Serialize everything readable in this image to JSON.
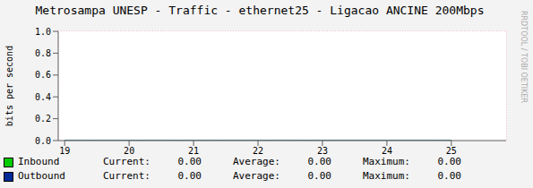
{
  "chart_data": {
    "type": "line",
    "title": "Metrosampa UNESP - Traffic - ethernet25 - Ligacao ANCINE 200Mbps",
    "y_label": "bits per second",
    "x": [
      19,
      20,
      21,
      22,
      23,
      24,
      25
    ],
    "series": [
      {
        "name": "Inbound",
        "color": "#00cc00",
        "values": [
          0,
          0,
          0,
          0,
          0,
          0,
          0
        ],
        "stats": [
          {
            "name": "Current:",
            "value": 0,
            "label": "0.00"
          },
          {
            "name": "Average:",
            "value": 0,
            "label": "0.00"
          },
          {
            "name": "Maximum:",
            "value": 0,
            "label": "0.00"
          }
        ]
      },
      {
        "name": "Outbound",
        "color": "#002a97",
        "values": [
          0,
          0,
          0,
          0,
          0,
          0,
          0
        ],
        "stats": [
          {
            "name": "Current:",
            "value": 0,
            "label": "0.00"
          },
          {
            "name": "Average:",
            "value": 0,
            "label": "0.00"
          },
          {
            "name": "Maximum:",
            "value": 0,
            "label": "0.00"
          }
        ]
      }
    ],
    "xlim": [
      18.9,
      25.85
    ],
    "xticks": [
      19,
      20,
      21,
      22,
      23,
      24,
      25
    ],
    "ylim": [
      0,
      1
    ],
    "yticks": [
      {
        "value": 0,
        "label": "0.0"
      },
      {
        "value": 0.2,
        "label": "0.2"
      },
      {
        "value": 0.4,
        "label": "0.4"
      },
      {
        "value": 0.6,
        "label": "0.6"
      },
      {
        "value": 0.8,
        "label": "0.8"
      },
      {
        "value": 1,
        "label": "1.0"
      }
    ],
    "grid": true,
    "annotations": [
      "RRDTOOL / TOBI OETIKER"
    ]
  }
}
